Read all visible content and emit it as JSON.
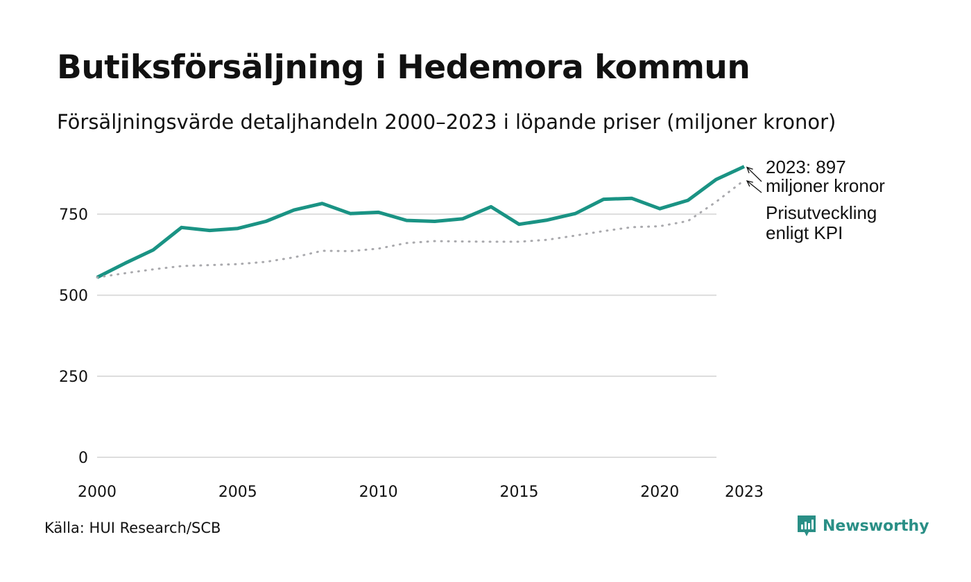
{
  "title": "Butiksförsäljning i Hedemora kommun",
  "subtitle": "Försäljningsvärde detaljhandeln 2000–2023 i löpande priser (miljoner kronor)",
  "source": "Källa: HUI Research/SCB",
  "brand": {
    "name": "Newsworthy",
    "icon": "newsworthy-logo-icon"
  },
  "colors": {
    "main": "#1a9384",
    "kpi": "#a9a9ad",
    "grid": "#dddddd",
    "brand": "#2a8f86"
  },
  "chart_data": {
    "type": "line",
    "title": "Butiksförsäljning i Hedemora kommun",
    "xlabel": "",
    "ylabel": "",
    "x": [
      2000,
      2001,
      2002,
      2003,
      2004,
      2005,
      2006,
      2007,
      2008,
      2009,
      2010,
      2011,
      2012,
      2013,
      2014,
      2015,
      2016,
      2017,
      2018,
      2019,
      2020,
      2021,
      2022,
      2023
    ],
    "xlim": [
      2000,
      2023
    ],
    "ylim": [
      0,
      900
    ],
    "yticks": [
      0,
      250,
      500,
      750
    ],
    "xticks": [
      {
        "value": 2000,
        "label": "2000"
      },
      {
        "value": 2005,
        "label": "2005"
      },
      {
        "value": 2010,
        "label": "2010"
      },
      {
        "value": 2015,
        "label": "2015"
      },
      {
        "value": 2020,
        "label": "2020"
      },
      {
        "value": 2023,
        "label": "2023"
      }
    ],
    "series": [
      {
        "name": "Försäljningsvärde",
        "style": "solid",
        "values": [
          555,
          599,
          640,
          709,
          700,
          706,
          728,
          763,
          783,
          752,
          756,
          731,
          728,
          736,
          773,
          719,
          732,
          752,
          796,
          799,
          767,
          793,
          857,
          897
        ]
      },
      {
        "name": "Prisutveckling enligt KPI",
        "style": "dotted",
        "values": [
          555,
          568,
          580,
          590,
          593,
          596,
          603,
          617,
          637,
          636,
          644,
          661,
          667,
          666,
          665,
          665,
          671,
          684,
          698,
          710,
          713,
          729,
          788,
          855
        ]
      }
    ],
    "annotations": [
      {
        "series": 0,
        "lines": [
          "2023: 897",
          "miljoner kronor"
        ]
      },
      {
        "series": 1,
        "lines": [
          "Prisutveckling",
          "enligt KPI"
        ]
      }
    ]
  }
}
